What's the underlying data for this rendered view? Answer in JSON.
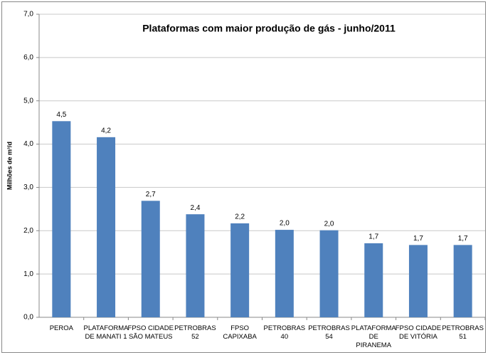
{
  "chart_data": {
    "type": "bar",
    "title": "Plataformas com maior produção de gás - junho/2011",
    "y_axis_label": "Milhões de m³/d",
    "categories": [
      "PEROA",
      "PLATAFORMA DE MANATI 1",
      "FPSO CIDADE SÃO MATEUS",
      "PETROBRAS 52",
      "FPSO CAPIXABA",
      "PETROBRAS 40",
      "PETROBRAS 54",
      "PLATAFORMA DE PIRANEMA",
      "FPSO CIDADE DE VITÓRIA",
      "PETROBRAS 51"
    ],
    "values": [
      4.53,
      4.16,
      2.69,
      2.38,
      2.17,
      2.02,
      2.01,
      1.71,
      1.67,
      1.67
    ],
    "value_labels": [
      "4,5",
      "4,2",
      "2,7",
      "2,4",
      "2,2",
      "2,0",
      "2,0",
      "1,7",
      "1,7",
      "1,7"
    ],
    "color": "#4f81bd",
    "ylim": [
      0,
      7
    ],
    "yticks": [
      {
        "value": 0,
        "label": "0,0"
      },
      {
        "value": 1,
        "label": "1,0"
      },
      {
        "value": 2,
        "label": "2,0"
      },
      {
        "value": 3,
        "label": "3,0"
      },
      {
        "value": 4,
        "label": "4,0"
      },
      {
        "value": 5,
        "label": "5,0"
      },
      {
        "value": 6,
        "label": "6,0"
      },
      {
        "value": 7,
        "label": "7,0"
      }
    ],
    "grid": true
  }
}
